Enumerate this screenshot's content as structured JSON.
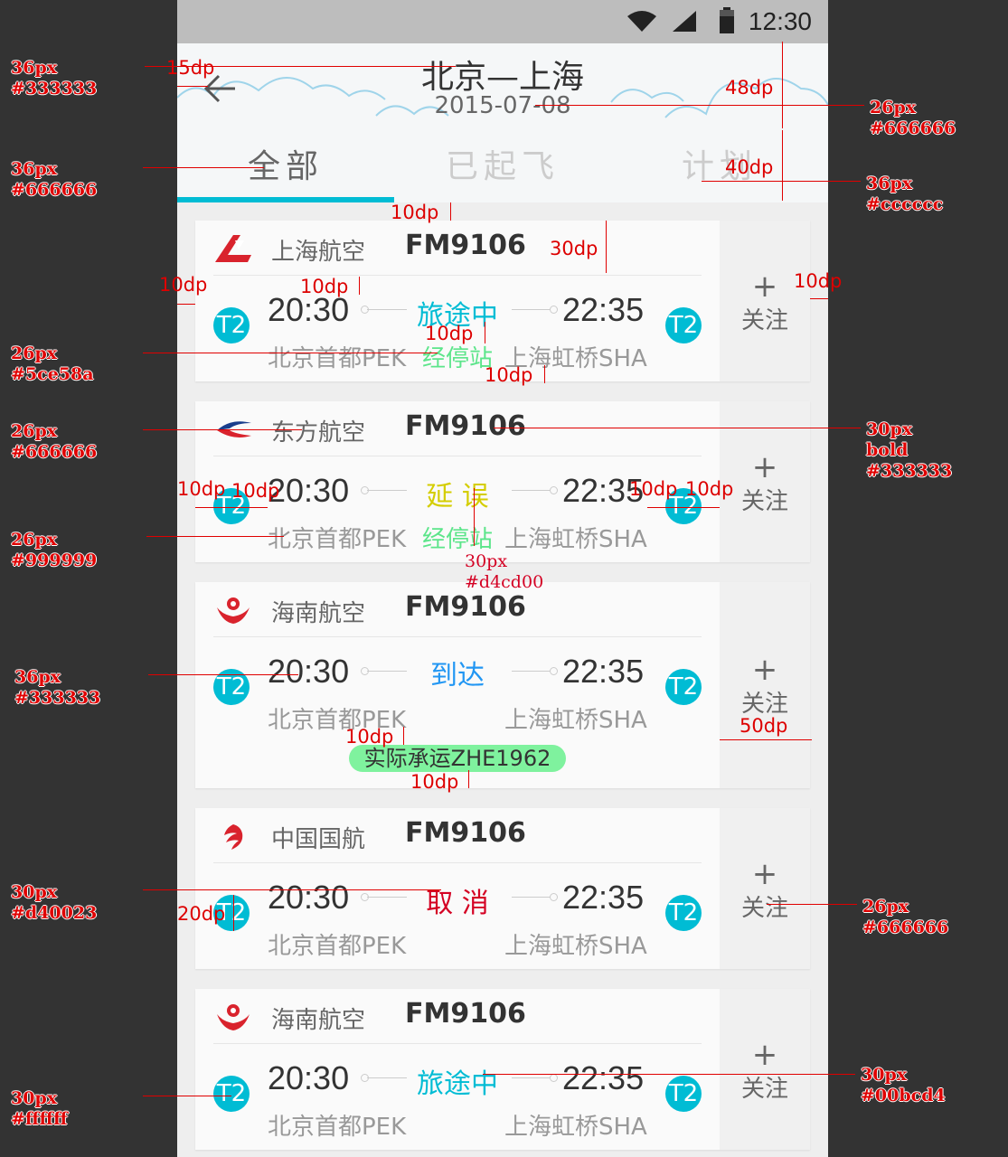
{
  "status_bar": {
    "time": "12:30"
  },
  "header": {
    "title": "北京—上海",
    "date": "2015-07-08",
    "tabs": [
      {
        "label": "全部",
        "active": true
      },
      {
        "label": "已起飞",
        "active": false
      },
      {
        "label": "计划",
        "active": false
      }
    ]
  },
  "colors": {
    "accent": "#00bcd4",
    "title": "#333333",
    "secondary": "#666666",
    "muted": "#999999",
    "inactive_tab": "#cccccc",
    "stopover": "#5ce58a",
    "delayed": "#d4cd00",
    "cancelled": "#d40023",
    "arrived": "#2196f3"
  },
  "follow": {
    "plus": "+",
    "label": "关注"
  },
  "flights": [
    {
      "airline": "上海航空",
      "logo": "shanghai-airlines-logo",
      "flight_no": "FM9106",
      "dep_time": "20:30",
      "arr_time": "22:35",
      "dep_airport": "北京首都PEK",
      "arr_airport": "上海虹桥SHA",
      "terminal_dep": "T2",
      "terminal_arr": "T2",
      "status": "旅途中",
      "status_color": "#00bcd4",
      "stopover": "经停站"
    },
    {
      "airline": "东方航空",
      "logo": "china-eastern-logo",
      "flight_no": "FM9106",
      "dep_time": "20:30",
      "arr_time": "22:35",
      "dep_airport": "北京首都PEK",
      "arr_airport": "上海虹桥SHA",
      "terminal_dep": "T2",
      "terminal_arr": "T2",
      "status": "延 误",
      "status_color": "#d4cd00",
      "stopover": "经停站"
    },
    {
      "airline": "海南航空",
      "logo": "hainan-airlines-logo",
      "flight_no": "FM9106",
      "dep_time": "20:30",
      "arr_time": "22:35",
      "dep_airport": "北京首都PEK",
      "arr_airport": "上海虹桥SHA",
      "terminal_dep": "T2",
      "terminal_arr": "T2",
      "status": "到达",
      "status_color": "#2196f3",
      "carrier": "实际承运ZHE1962"
    },
    {
      "airline": "中国国航",
      "logo": "air-china-logo",
      "flight_no": "FM9106",
      "dep_time": "20:30",
      "arr_time": "22:35",
      "dep_airport": "北京首都PEK",
      "arr_airport": "上海虹桥SHA",
      "terminal_dep": "T2",
      "terminal_arr": "T2",
      "status": "取 消",
      "status_color": "#d40023"
    },
    {
      "airline": "海南航空",
      "logo": "hainan-airlines-logo",
      "flight_no": "FM9106",
      "dep_time": "20:30",
      "arr_time": "22:35",
      "dep_airport": "北京首都PEK",
      "arr_airport": "上海虹桥SHA",
      "terminal_dep": "T2",
      "terminal_arr": "T2",
      "status": "旅途中",
      "status_color": "#00bcd4"
    }
  ],
  "annotations": {
    "a1": "36px",
    "a1c": "#333333",
    "a2": "15dp",
    "a3": "36px",
    "a3c": "#666666",
    "a4": "26px",
    "a4c": "#5ce58a",
    "a5": "26px",
    "a5c": "#666666",
    "a6": "26px",
    "a6c": "#999999",
    "a7": "36px",
    "a7c": "#333333",
    "a8": "30px",
    "a8c": "#d40023",
    "a9": "30px",
    "a9c": "#ffffff",
    "r1": "48dp",
    "r2": "26px",
    "r2c": "#666666",
    "r3": "40dp",
    "r4": "36px",
    "r4c": "#cccccc",
    "r5": "10dp",
    "r6": "30dp",
    "r7": "10dp",
    "r8": "10dp",
    "r9": "10dp",
    "r10": "10dp",
    "r11": "10dp",
    "r12": "30px",
    "r12b": "bold",
    "r12c": "#333333",
    "r13": "10dp",
    "r14": "10dp",
    "r15": "10dp",
    "r16": "10dp",
    "r17": "30px",
    "r17c": "#d4cd00",
    "r18": "10dp",
    "r19": "50dp",
    "r20": "10dp",
    "r21": "20dp",
    "r22": "26px",
    "r22c": "#666666",
    "r23": "30px",
    "r23c": "#00bcd4"
  }
}
